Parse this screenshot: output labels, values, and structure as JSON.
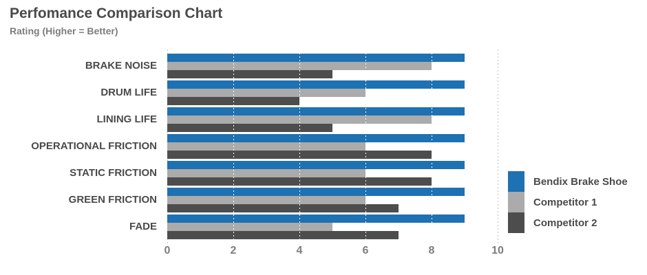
{
  "title": "Perfomance Comparison Chart",
  "subtitle": "Rating (Higher = Better)",
  "colors": {
    "bendix_blue": "#1e71b2",
    "competitor1_gray": "#ababab",
    "competitor2_dark": "#4d4d4d",
    "title_text": "#4a4a4a",
    "axis_text": "#7d7d7d",
    "gridline_gray": "#c2c2c2",
    "gridline_white": "#ffffff"
  },
  "chart_data": {
    "type": "bar",
    "orientation": "horizontal",
    "title": "Perfomance Comparison Chart",
    "subtitle": "Rating (Higher = Better)",
    "categories": [
      "BRAKE NOISE",
      "DRUM LIFE",
      "LINING LIFE",
      "OPERATIONAL FRICTION",
      "STATIC FRICTION",
      "GREEN FRICTION",
      "FADE"
    ],
    "series": [
      {
        "name": "Bendix Brake Shoe",
        "color": "#1e71b2",
        "values": [
          9,
          9,
          9,
          9,
          9,
          9,
          9
        ]
      },
      {
        "name": "Competitor 1",
        "color": "#ababab",
        "values": [
          8,
          6,
          8,
          6,
          6,
          6,
          5
        ]
      },
      {
        "name": "Competitor 2",
        "color": "#4d4d4d",
        "values": [
          5,
          4,
          5,
          8,
          8,
          7,
          7
        ]
      }
    ],
    "xlim": [
      0,
      10
    ],
    "x_ticks": [
      0,
      2,
      4,
      6,
      8,
      10
    ],
    "grid": "dashed-vertical",
    "legend_position": "right",
    "xlabel": "",
    "ylabel": ""
  }
}
